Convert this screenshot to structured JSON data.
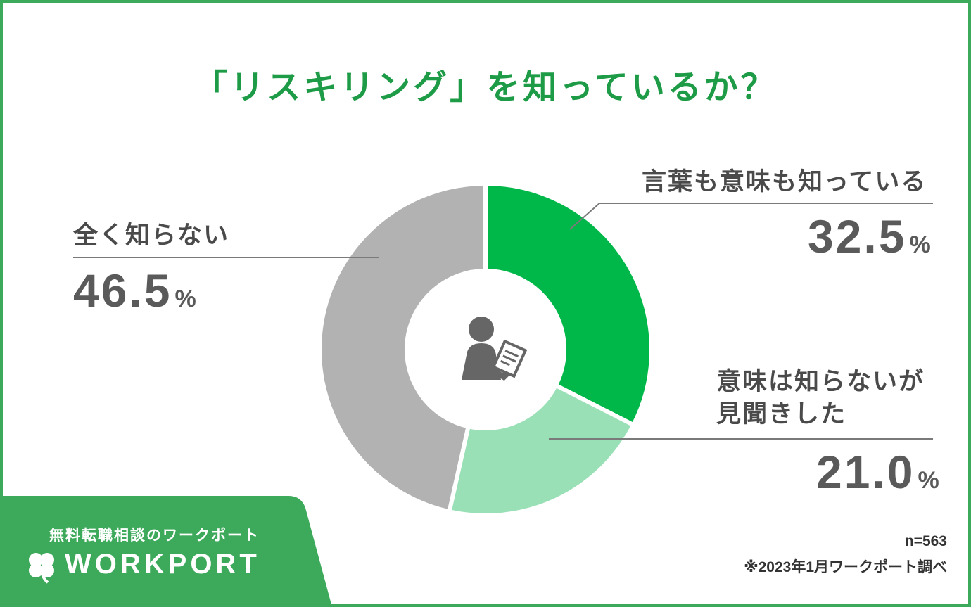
{
  "title": "「リスキリング」を知っているか？",
  "chart_data": {
    "type": "pie",
    "title": "「リスキリング」を知っているか？",
    "categories": [
      "言葉も意味も知っている",
      "意味は知らないが見聞きした",
      "全く知らない"
    ],
    "values": [
      32.5,
      21.0,
      46.5
    ],
    "unit": "%",
    "colors": [
      "#00b84a",
      "#9ae0b6",
      "#b2b2b2"
    ],
    "donut": true,
    "center_icon": "person-writing-icon"
  },
  "labels": {
    "know_both": {
      "text": "言葉も意味も知っている",
      "value": "32.5",
      "unit": "%"
    },
    "heard": {
      "line1": "意味は知らないが",
      "line2": "見聞きした",
      "value": "21.0",
      "unit": "%"
    },
    "unknown": {
      "text": "全く知らない",
      "value": "46.5",
      "unit": "%"
    }
  },
  "brand": {
    "tagline": "無料転職相談のワークポート",
    "logo_text": "WORKPORT",
    "color": "#3da95a"
  },
  "notes": {
    "sample": "n=563",
    "source": "※2023年1月ワークポート調べ"
  }
}
